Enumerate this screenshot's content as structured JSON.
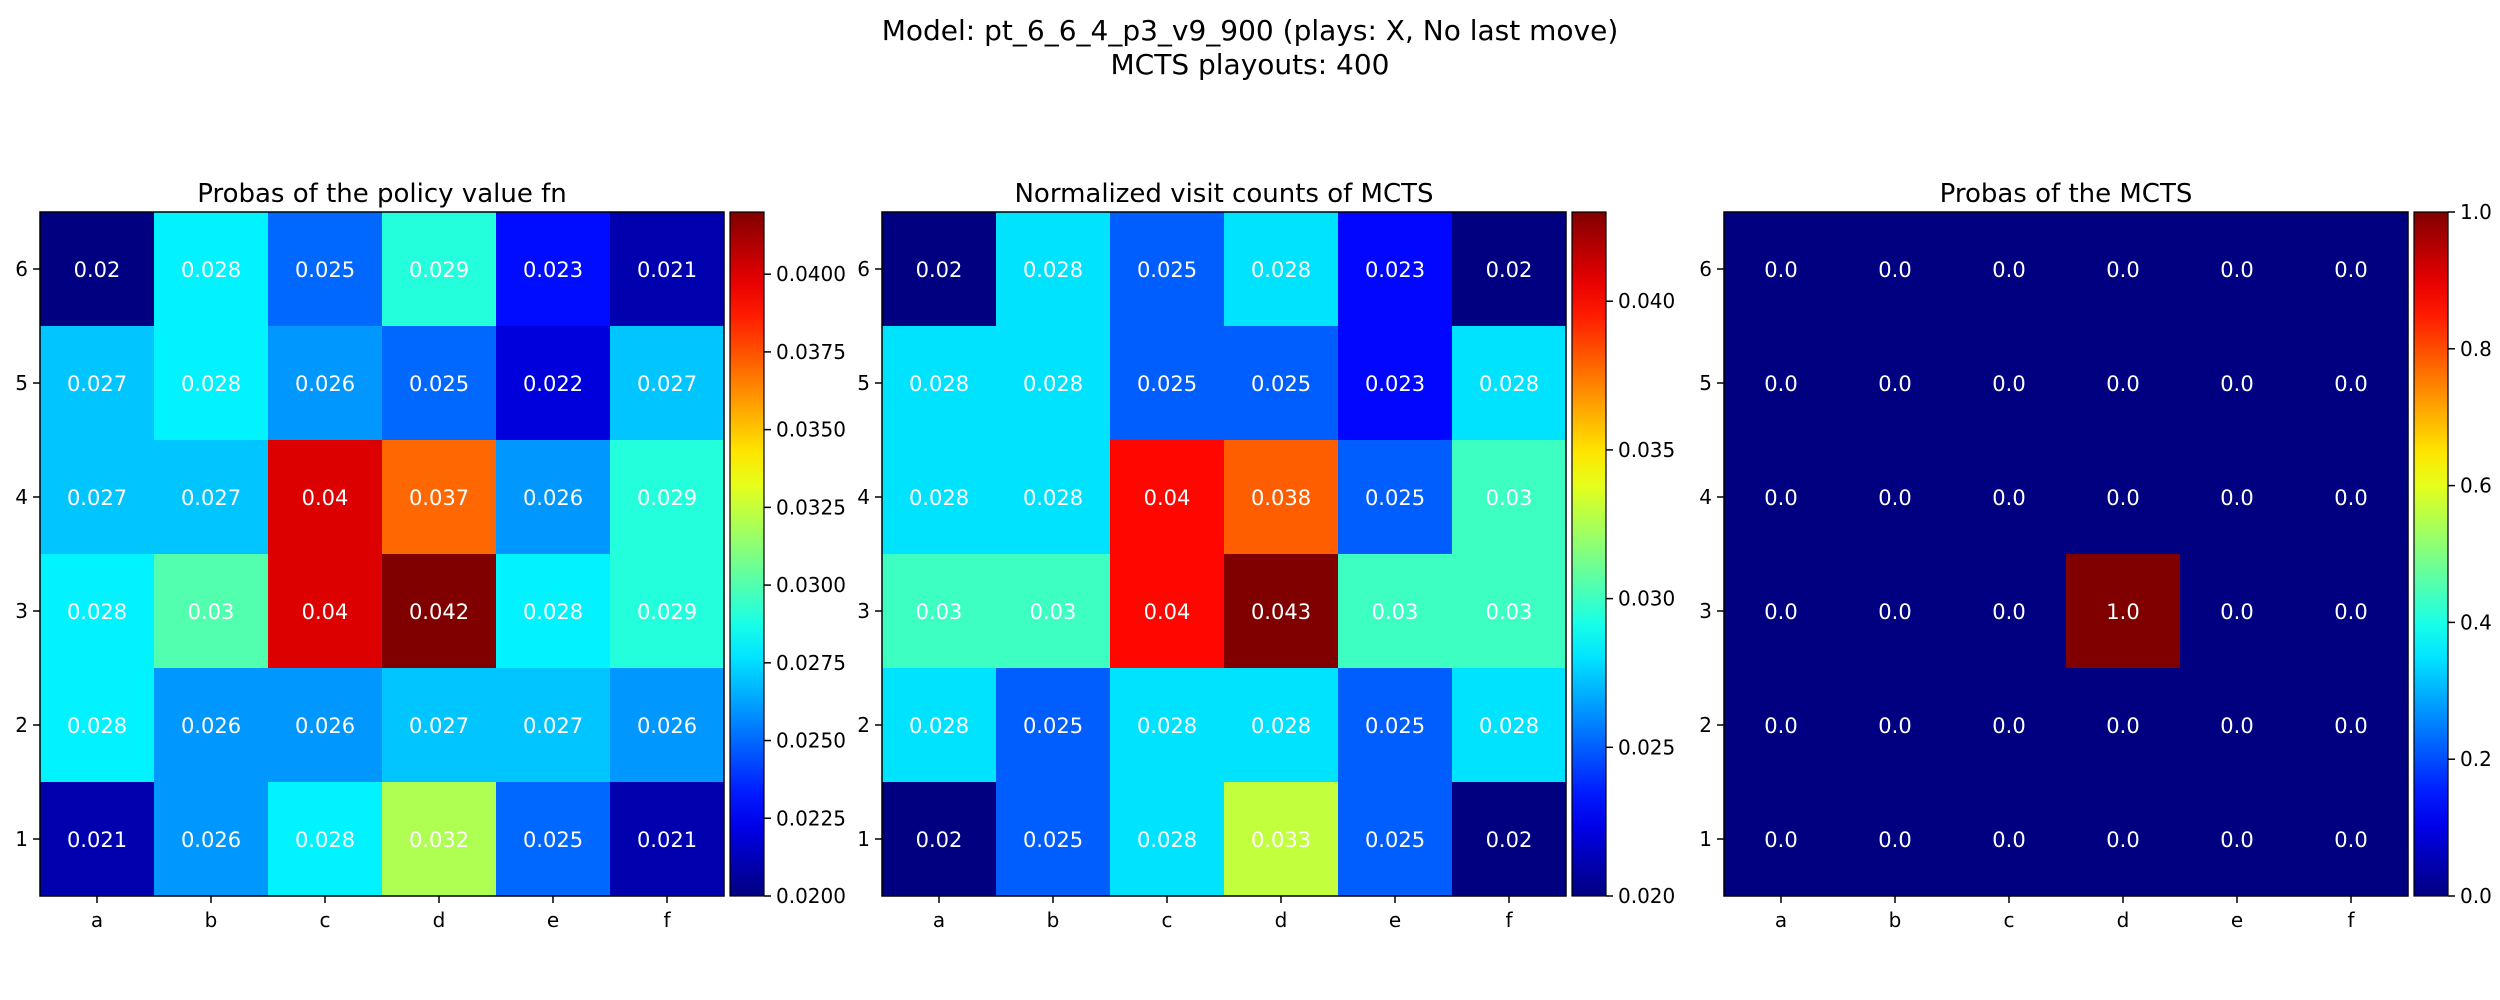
{
  "figure": {
    "title_line1": "Model: pt_6_6_4_p3_v9_900 (plays: X, No last move)",
    "title_line2": "MCTS playouts: 400"
  },
  "chart_data": [
    {
      "type": "heatmap",
      "title": "Probas of the policy value fn",
      "x_categories": [
        "a",
        "b",
        "c",
        "d",
        "e",
        "f"
      ],
      "y_categories": [
        "6",
        "5",
        "4",
        "3",
        "2",
        "1"
      ],
      "colormap": "jet",
      "vmin": 0.02,
      "vmax": 0.042,
      "colorbar_ticks": [
        0.02,
        0.0225,
        0.025,
        0.0275,
        0.03,
        0.0325,
        0.035,
        0.0375,
        0.04
      ],
      "colorbar_tick_labels": [
        "0.0200",
        "0.0225",
        "0.0250",
        "0.0275",
        "0.0300",
        "0.0325",
        "0.0350",
        "0.0375",
        "0.0400"
      ],
      "values": [
        [
          0.02,
          0.028,
          0.025,
          0.029,
          0.023,
          0.021
        ],
        [
          0.027,
          0.028,
          0.026,
          0.025,
          0.022,
          0.027
        ],
        [
          0.027,
          0.027,
          0.04,
          0.037,
          0.026,
          0.029
        ],
        [
          0.028,
          0.03,
          0.04,
          0.042,
          0.028,
          0.029
        ],
        [
          0.028,
          0.026,
          0.026,
          0.027,
          0.027,
          0.026
        ],
        [
          0.021,
          0.026,
          0.028,
          0.032,
          0.025,
          0.021
        ]
      ],
      "labels": [
        [
          "0.02",
          "0.028",
          "0.025",
          "0.029",
          "0.023",
          "0.021"
        ],
        [
          "0.027",
          "0.028",
          "0.026",
          "0.025",
          "0.022",
          "0.027"
        ],
        [
          "0.027",
          "0.027",
          "0.04",
          "0.037",
          "0.026",
          "0.029"
        ],
        [
          "0.028",
          "0.03",
          "0.04",
          "0.042",
          "0.028",
          "0.029"
        ],
        [
          "0.028",
          "0.026",
          "0.026",
          "0.027",
          "0.027",
          "0.026"
        ],
        [
          "0.021",
          "0.026",
          "0.028",
          "0.032",
          "0.025",
          "0.021"
        ]
      ]
    },
    {
      "type": "heatmap",
      "title": "Normalized visit counts of MCTS",
      "x_categories": [
        "a",
        "b",
        "c",
        "d",
        "e",
        "f"
      ],
      "y_categories": [
        "6",
        "5",
        "4",
        "3",
        "2",
        "1"
      ],
      "colormap": "jet",
      "vmin": 0.02,
      "vmax": 0.043,
      "colorbar_ticks": [
        0.02,
        0.025,
        0.03,
        0.035,
        0.04
      ],
      "colorbar_tick_labels": [
        "0.020",
        "0.025",
        "0.030",
        "0.035",
        "0.040"
      ],
      "values": [
        [
          0.02,
          0.028,
          0.025,
          0.028,
          0.023,
          0.02
        ],
        [
          0.028,
          0.028,
          0.025,
          0.025,
          0.023,
          0.028
        ],
        [
          0.028,
          0.028,
          0.04,
          0.038,
          0.025,
          0.03
        ],
        [
          0.03,
          0.03,
          0.04,
          0.043,
          0.03,
          0.03
        ],
        [
          0.028,
          0.025,
          0.028,
          0.028,
          0.025,
          0.028
        ],
        [
          0.02,
          0.025,
          0.028,
          0.033,
          0.025,
          0.02
        ]
      ],
      "labels": [
        [
          "0.02",
          "0.028",
          "0.025",
          "0.028",
          "0.023",
          "0.02"
        ],
        [
          "0.028",
          "0.028",
          "0.025",
          "0.025",
          "0.023",
          "0.028"
        ],
        [
          "0.028",
          "0.028",
          "0.04",
          "0.038",
          "0.025",
          "0.03"
        ],
        [
          "0.03",
          "0.03",
          "0.04",
          "0.043",
          "0.03",
          "0.03"
        ],
        [
          "0.028",
          "0.025",
          "0.028",
          "0.028",
          "0.025",
          "0.028"
        ],
        [
          "0.02",
          "0.025",
          "0.028",
          "0.033",
          "0.025",
          "0.02"
        ]
      ]
    },
    {
      "type": "heatmap",
      "title": "Probas of the MCTS",
      "x_categories": [
        "a",
        "b",
        "c",
        "d",
        "e",
        "f"
      ],
      "y_categories": [
        "6",
        "5",
        "4",
        "3",
        "2",
        "1"
      ],
      "colormap": "jet",
      "vmin": 0.0,
      "vmax": 1.0,
      "colorbar_ticks": [
        0.0,
        0.2,
        0.4,
        0.6,
        0.8,
        1.0
      ],
      "colorbar_tick_labels": [
        "0.0",
        "0.2",
        "0.4",
        "0.6",
        "0.8",
        "1.0"
      ],
      "values": [
        [
          0.0,
          0.0,
          0.0,
          0.0,
          0.0,
          0.0
        ],
        [
          0.0,
          0.0,
          0.0,
          0.0,
          0.0,
          0.0
        ],
        [
          0.0,
          0.0,
          0.0,
          0.0,
          0.0,
          0.0
        ],
        [
          0.0,
          0.0,
          0.0,
          1.0,
          0.0,
          0.0
        ],
        [
          0.0,
          0.0,
          0.0,
          0.0,
          0.0,
          0.0
        ],
        [
          0.0,
          0.0,
          0.0,
          0.0,
          0.0,
          0.0
        ]
      ],
      "labels": [
        [
          "0.0",
          "0.0",
          "0.0",
          "0.0",
          "0.0",
          "0.0"
        ],
        [
          "0.0",
          "0.0",
          "0.0",
          "0.0",
          "0.0",
          "0.0"
        ],
        [
          "0.0",
          "0.0",
          "0.0",
          "0.0",
          "0.0",
          "0.0"
        ],
        [
          "0.0",
          "0.0",
          "0.0",
          "1.0",
          "0.0",
          "0.0"
        ],
        [
          "0.0",
          "0.0",
          "0.0",
          "0.0",
          "0.0",
          "0.0"
        ],
        [
          "0.0",
          "0.0",
          "0.0",
          "0.0",
          "0.0",
          "0.0"
        ]
      ]
    }
  ]
}
